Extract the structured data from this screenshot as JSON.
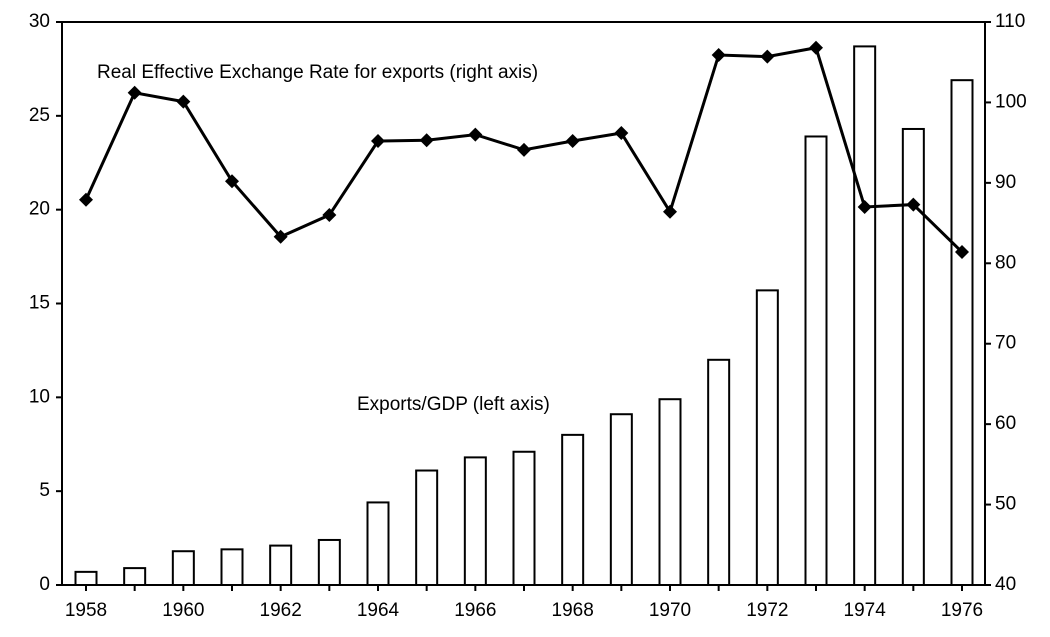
{
  "chart_data": {
    "type": "bar-line",
    "categories": [
      "1958",
      null,
      "1960",
      null,
      "1962",
      null,
      "1964",
      null,
      "1966",
      null,
      "1968",
      null,
      "1970",
      null,
      "1972",
      null,
      "1974",
      null,
      "1976"
    ],
    "series": [
      {
        "name": "Exports/GDP (left axis)",
        "type": "bar",
        "axis": "y",
        "color": "#ffffff",
        "values": [
          0.7,
          0.9,
          1.8,
          1.9,
          2.1,
          2.4,
          4.4,
          6.1,
          6.8,
          7.1,
          8.0,
          9.1,
          9.9,
          12.0,
          15.7,
          23.9,
          28.7,
          24.3,
          26.9
        ]
      },
      {
        "name": "Real Effective Exchange Rate for exports (right axis)",
        "type": "line",
        "axis": "y2",
        "color": "#000000",
        "values": [
          87.9,
          101.2,
          100.1,
          90.2,
          83.3,
          86.0,
          95.2,
          95.3,
          96.0,
          94.1,
          95.2,
          96.2,
          86.4,
          105.9,
          105.7,
          106.8,
          87.0,
          87.3,
          81.4
        ]
      }
    ],
    "ylim": [
      0,
      30
    ],
    "yticks": [
      0,
      5,
      10,
      15,
      20,
      25,
      30
    ],
    "y2lim": [
      40,
      110
    ],
    "y2ticks": [
      40,
      50,
      60,
      70,
      80,
      90,
      100,
      110
    ],
    "grid": false
  }
}
